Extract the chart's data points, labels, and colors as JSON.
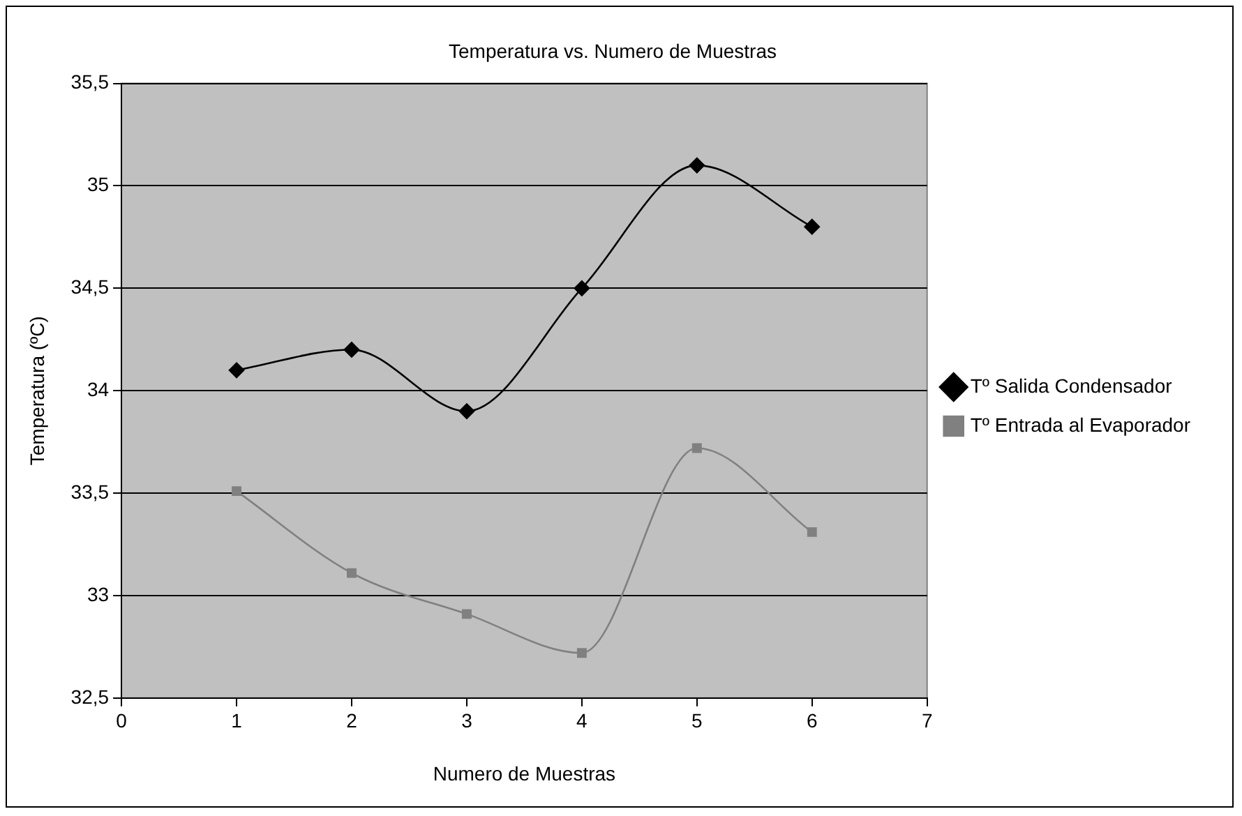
{
  "chart_data": {
    "type": "line",
    "title": "Temperatura vs. Numero de Muestras",
    "xlabel": "Numero de Muestras",
    "ylabel": "Temperatura (ºC)",
    "x": [
      1,
      2,
      3,
      4,
      5,
      6
    ],
    "series": [
      {
        "name": "Tº Salida Condensador",
        "color": "#000000",
        "marker": "diamond",
        "values": [
          34.1,
          34.2,
          33.9,
          34.5,
          35.1,
          34.8
        ]
      },
      {
        "name": "Tº Entrada al Evaporador",
        "color": "#808080",
        "marker": "square",
        "values": [
          33.51,
          33.11,
          32.91,
          32.72,
          33.72,
          33.31
        ]
      }
    ],
    "xlim": [
      0,
      7
    ],
    "xticks": [
      0,
      1,
      2,
      3,
      4,
      5,
      6,
      7
    ],
    "ylim": [
      32.5,
      35.5
    ],
    "yticks": [
      {
        "value": 32.5,
        "label": "32,5"
      },
      {
        "value": 33,
        "label": "33"
      },
      {
        "value": 33.5,
        "label": "33,5"
      },
      {
        "value": 34,
        "label": "34"
      },
      {
        "value": 34.5,
        "label": "34,5"
      },
      {
        "value": 35,
        "label": "35"
      },
      {
        "value": 35.5,
        "label": "35,5"
      }
    ],
    "grid": "y",
    "legend": "right"
  }
}
